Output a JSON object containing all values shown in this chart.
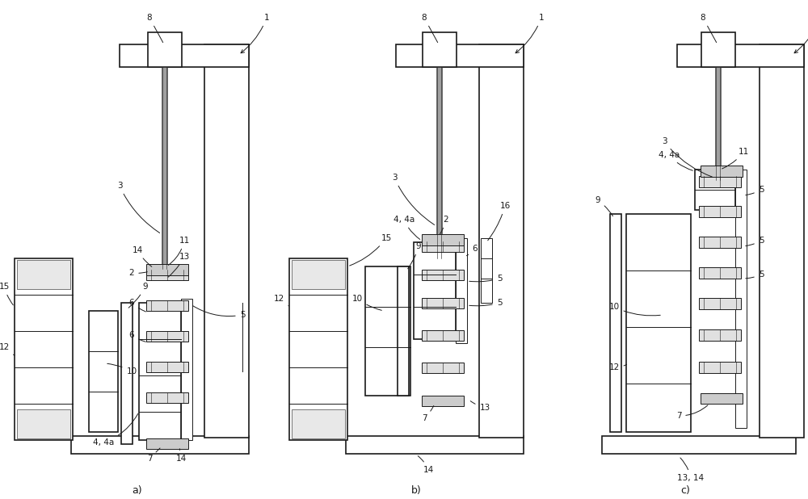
{
  "bg_color": "#ffffff",
  "line_color": "#1a1a1a",
  "lw_main": 1.2,
  "lw_thin": 0.7,
  "lw_xtra": 0.4,
  "fs": 7.5,
  "panels": [
    "a)",
    "b)",
    "c)"
  ]
}
